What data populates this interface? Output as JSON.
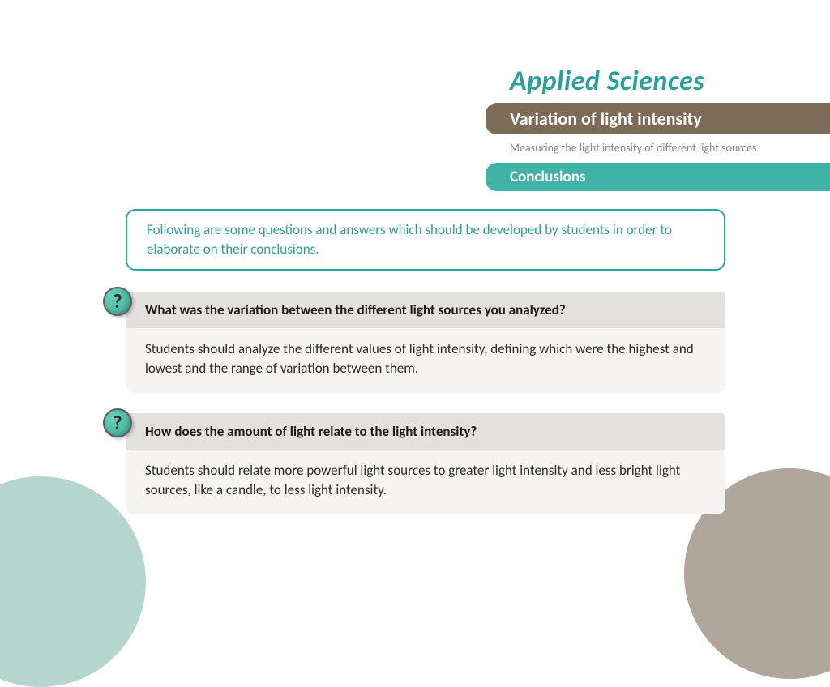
{
  "brand": "Applied Sciences",
  "topic": "Variation of light intensity",
  "subtopic": "Measuring the light intensity of different light sources",
  "section": "Conclusions",
  "intro": "Following are some questions and answers which should be developed by students in order to elaborate on their conclusions.",
  "qa": [
    {
      "icon": "?",
      "question": "What was the variation between the different light sources you analyzed?",
      "answer": "Students should analyze the different values of light intensity, defining which were the highest and lowest and the range of variation between them."
    },
    {
      "icon": "?",
      "question": "How does the amount of light relate to the light intensity?",
      "answer": "Students should relate more powerful light sources to greater light intensity and less bright light sources, like a candle, to less light intensity."
    }
  ],
  "colors": {
    "brand": "#2aa198",
    "topic_bg": "#7d6a58",
    "section_bg": "#3fb3a6",
    "intro_border": "#2aa99a",
    "q_head_bg": "#e3e1de",
    "q_body_bg": "#f5f4f2",
    "deco_left": "#b4d6cd",
    "deco_right": "#b0a69b"
  }
}
